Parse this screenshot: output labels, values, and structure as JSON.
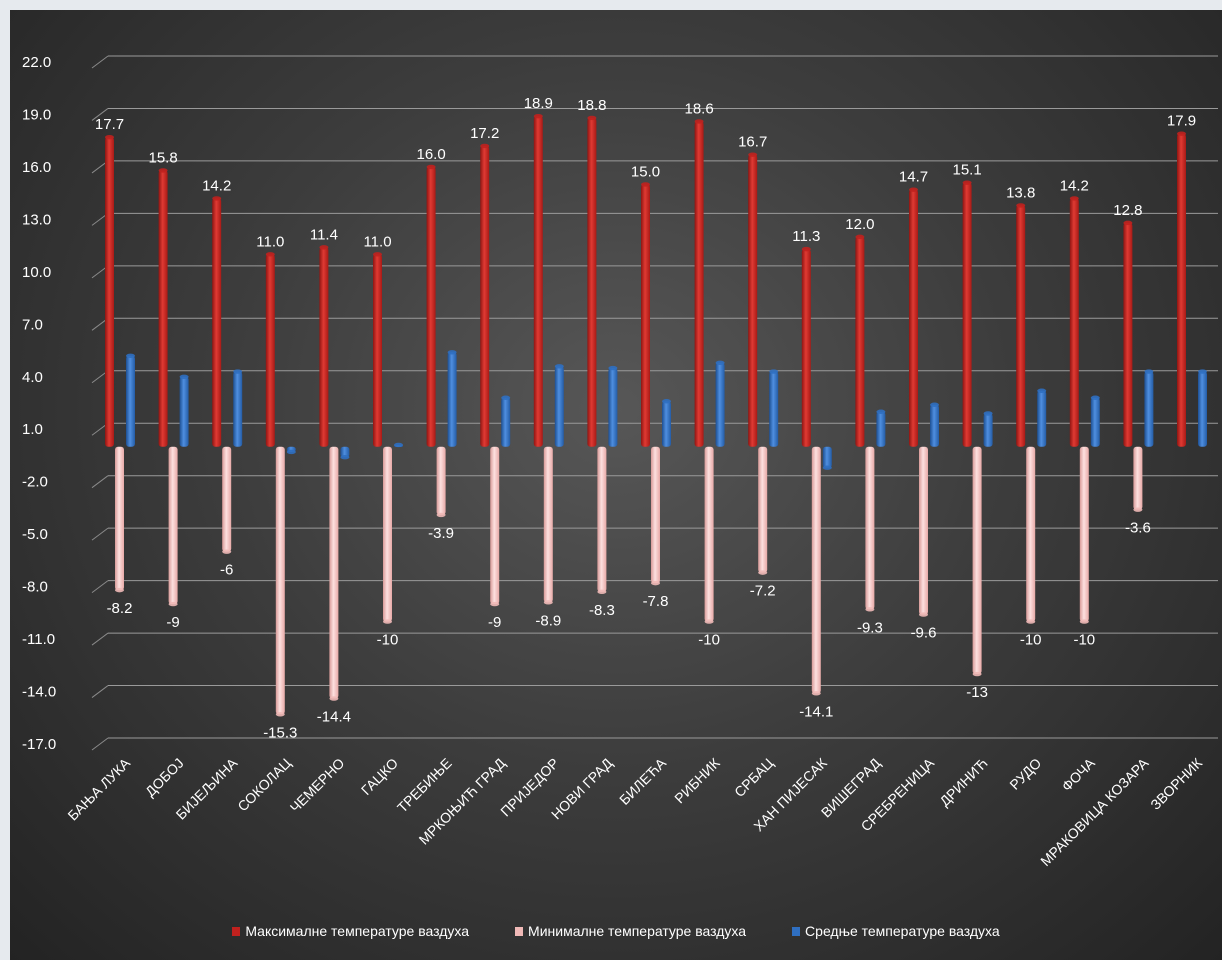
{
  "chart_data": {
    "type": "bar",
    "title": "",
    "xlabel": "",
    "ylabel": "",
    "ylim": [
      -17.0,
      22.0
    ],
    "yticks": [
      "22.0",
      "19.0",
      "16.0",
      "13.0",
      "10.0",
      "7.0",
      "4.0",
      "1.0",
      "-2.0",
      "-5.0",
      "-8.0",
      "-11.0",
      "-14.0",
      "-17.0"
    ],
    "grid": true,
    "legend_position": "bottom",
    "categories": [
      "БАЊА ЛУКА",
      "ДОБОЈ",
      "БИЈЕЉИНА",
      "СОКОЛАЦ",
      "ЧЕМЕРНО",
      "ГАЦКО",
      "ТРЕБИЊЕ",
      "МРКОЊИЋ ГРАД",
      "ПРИЈЕДОР",
      "НОВИ ГРАД",
      "БИЛЕЋА",
      "РИБНИК",
      "СРБАЦ",
      "ХАН ПИЈЕСАК",
      "ВИШЕГРАД",
      "СРЕБРЕНИЦА",
      "ДРИНИЋ",
      "РУДО",
      "ФОЧА",
      "МРАКОВИЦА КОЗАРА",
      "ЗВОРНИК"
    ],
    "series": [
      {
        "name": "Максималне температуре  ваздуха",
        "color": "#c0211e",
        "values": [
          17.7,
          15.8,
          14.2,
          11.0,
          11.4,
          11.0,
          16.0,
          17.2,
          18.9,
          18.8,
          15.0,
          18.6,
          16.7,
          11.3,
          12.0,
          14.7,
          15.1,
          13.8,
          14.2,
          12.8,
          17.9
        ],
        "labels": [
          "17.7",
          "15.8",
          "14.2",
          "11.0",
          "11.4",
          "11.0",
          "16.0",
          "17.2",
          "18.9",
          "18.8",
          "15.0",
          "18.6",
          "16.7",
          "11.3",
          "12.0",
          "14.7",
          "15.1",
          "13.8",
          "14.2",
          "12.8",
          "17.9"
        ]
      },
      {
        "name": "Минималне температуре ваздуха",
        "color": "#f0b9b7",
        "values": [
          -8.2,
          -9,
          -6,
          -15.3,
          -14.4,
          -10,
          -3.9,
          -9,
          -8.9,
          -8.3,
          -7.8,
          -10,
          -7.2,
          -14.1,
          -9.3,
          -9.6,
          -13,
          -10,
          -10,
          -3.6,
          null
        ],
        "labels": [
          "-8.2",
          "-9",
          "-6",
          "-15.3",
          "-14.4",
          "-10",
          "-3.9",
          "-9",
          "-8.9",
          "-8.3",
          "-7.8",
          "-10",
          "-7.2",
          "-14.1",
          "-9.3",
          "-9.6",
          "-13",
          "-10",
          "-10",
          "-3.6",
          ""
        ]
      },
      {
        "name": "Средње температуре ваздуха",
        "color": "#2f6fc1",
        "values": [
          5.2,
          4.0,
          4.3,
          -0.3,
          -0.6,
          0.1,
          5.4,
          2.8,
          4.6,
          4.5,
          2.6,
          4.8,
          4.3,
          -1.2,
          2.0,
          2.4,
          1.9,
          3.2,
          2.8,
          4.3,
          4.3
        ],
        "labels": []
      }
    ]
  }
}
